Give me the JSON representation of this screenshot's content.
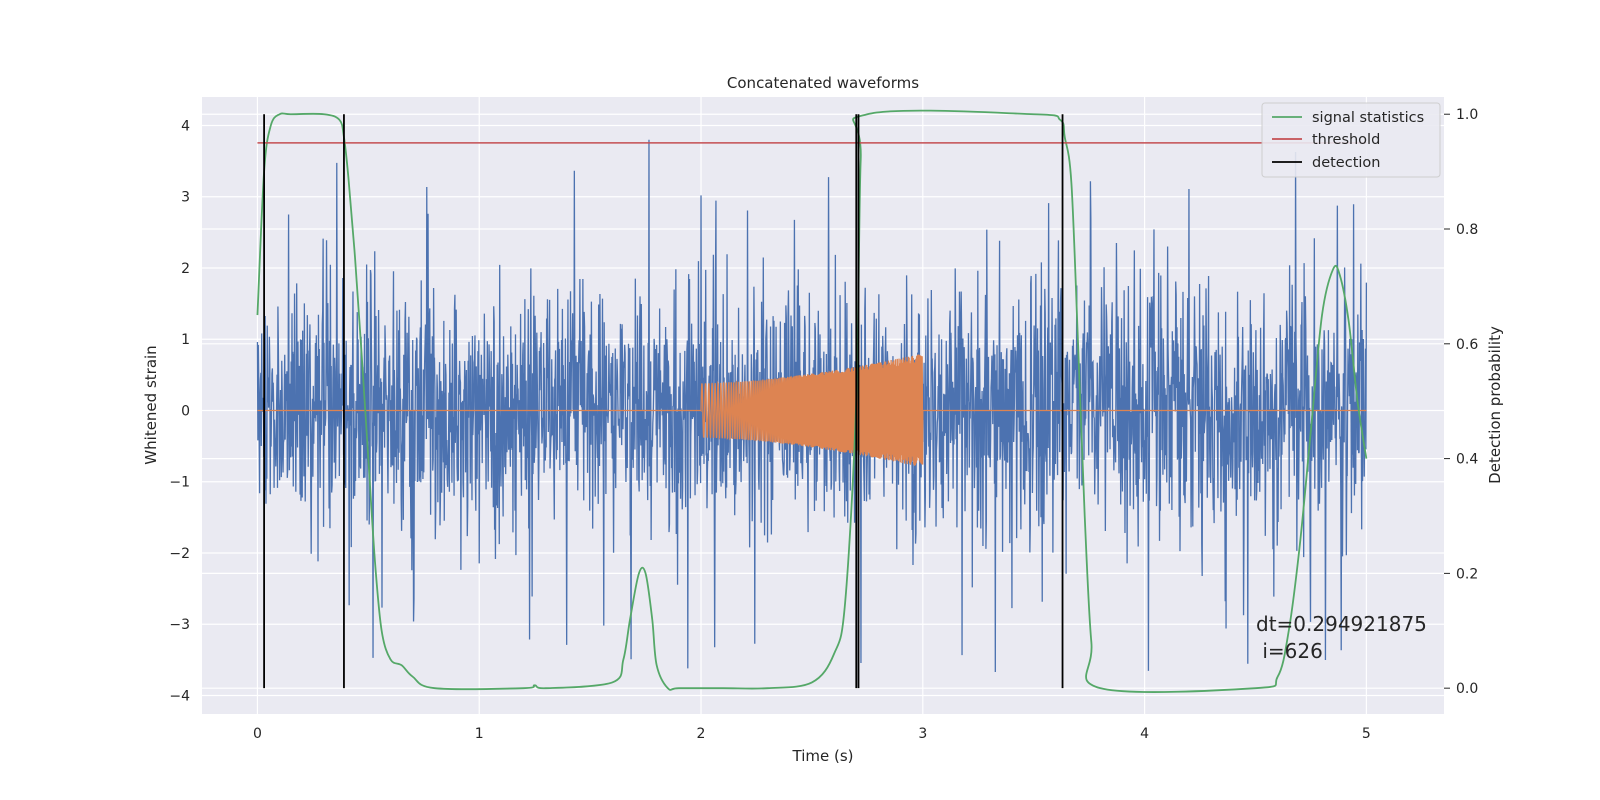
{
  "chart_data": {
    "type": "line",
    "title": "Concatenated waveforms",
    "xlabel": "Time (s)",
    "ylabel": "Whitened strain",
    "y2label": "Detection probability",
    "xlim": [
      -0.25,
      5.35
    ],
    "ylim": [
      -4.26,
      4.4
    ],
    "y2lim": [
      -0.045,
      1.03
    ],
    "xticks": [
      0,
      1,
      2,
      3,
      4,
      5
    ],
    "yticks": [
      -4,
      -3,
      -2,
      -1,
      0,
      1,
      2,
      3,
      4
    ],
    "y2ticks": [
      0.0,
      0.2,
      0.4,
      0.6,
      0.8,
      1.0
    ],
    "xtick_labels": [
      "0",
      "1",
      "2",
      "3",
      "4",
      "5"
    ],
    "ytick_labels": [
      "−4",
      "−3",
      "−2",
      "−1",
      "0",
      "1",
      "2",
      "3",
      "4"
    ],
    "y2tick_labels": [
      "0.0",
      "0.2",
      "0.4",
      "0.6",
      "0.8",
      "1.0"
    ],
    "grid": true,
    "legend_position": "top-right",
    "colors": {
      "background": "#eaeaf2",
      "grid": "#ffffff",
      "strain": "#4c72b0",
      "injection": "#dd8452",
      "signal_statistics": "#55a868",
      "threshold": "#c44e52",
      "detection": "#000000"
    },
    "series": [
      {
        "name": "",
        "axis": "left",
        "description_kind": "noise",
        "x_range": [
          0,
          5
        ],
        "amplitude_std": 0.85,
        "peak_values": [
          4.0,
          3.4,
          3.6,
          3.5,
          -3.7,
          -3.7,
          -3.3,
          -3.0
        ]
      },
      {
        "name": "",
        "axis": "left",
        "description_kind": "chirp",
        "x": [
          0,
          2.0,
          2.0,
          2.5,
          3.0,
          3.0,
          5.0
        ],
        "y_envelope": [
          0,
          0.38,
          0.38,
          0.55,
          0.8,
          0,
          0
        ],
        "chirp_start": 2.0,
        "chirp_end": 3.0
      },
      {
        "name": "signal statistics",
        "axis": "right",
        "x": [
          0.0,
          0.03,
          0.06,
          0.1,
          0.15,
          0.3,
          0.37,
          0.39,
          0.41,
          0.44,
          0.47,
          0.5,
          0.53,
          0.56,
          0.6,
          0.65,
          0.7,
          0.8,
          1.2,
          1.25,
          1.3,
          1.6,
          1.65,
          1.68,
          1.72,
          1.75,
          1.78,
          1.8,
          1.85,
          1.9,
          2.1,
          2.3,
          2.5,
          2.6,
          2.65,
          2.7,
          2.72,
          2.75,
          3.5,
          3.62,
          3.64,
          3.67,
          3.7,
          3.73,
          3.76,
          3.8,
          4.5,
          4.6,
          4.65,
          4.7,
          4.75,
          4.8,
          4.85,
          4.88,
          4.92,
          4.96,
          5.0
        ],
        "y": [
          0.65,
          0.9,
          0.98,
          1.0,
          1.0,
          1.0,
          0.99,
          0.96,
          0.89,
          0.75,
          0.58,
          0.4,
          0.22,
          0.1,
          0.05,
          0.04,
          0.02,
          0.0,
          0.0,
          0.005,
          0.0,
          0.01,
          0.05,
          0.12,
          0.2,
          0.2,
          0.12,
          0.04,
          0.0,
          0.0,
          0.0,
          0.0,
          0.01,
          0.06,
          0.15,
          0.5,
          0.92,
          1.0,
          1.0,
          0.99,
          0.96,
          0.88,
          0.6,
          0.3,
          0.08,
          0.0,
          0.0,
          0.02,
          0.1,
          0.25,
          0.45,
          0.65,
          0.73,
          0.72,
          0.64,
          0.5,
          0.4
        ]
      },
      {
        "name": "threshold",
        "axis": "right",
        "x": [
          0,
          5
        ],
        "y": [
          0.95,
          0.95
        ]
      },
      {
        "name": "detection",
        "axis": "right",
        "vlines": [
          0.03,
          0.39,
          2.7,
          2.71,
          3.63
        ],
        "ymin": 0.0,
        "ymax": 1.0
      }
    ],
    "annotation": [
      "dt=0.294921875",
      " i=626"
    ]
  }
}
